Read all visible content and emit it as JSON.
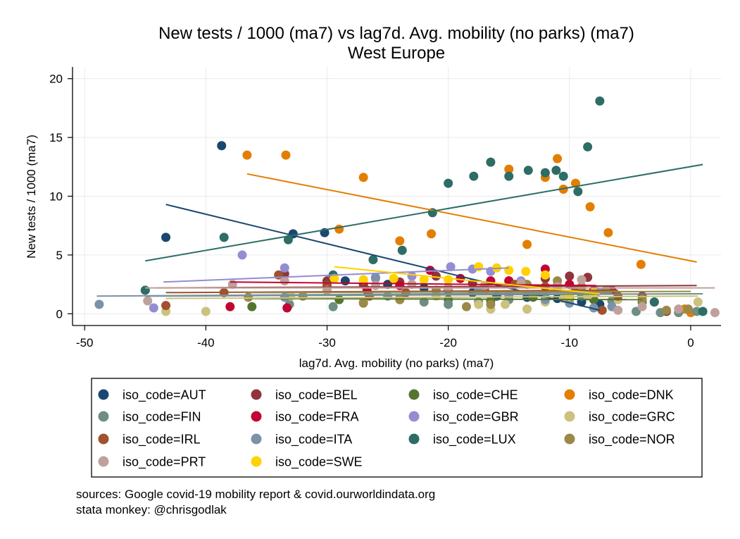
{
  "chart_data": {
    "type": "scatter",
    "title": "New tests / 1000 (ma7) vs lag7d. Avg. mobility (no parks) (ma7)",
    "subtitle": "West Europe",
    "xlabel": "lag7d. Avg. mobility (no parks) (ma7)",
    "ylabel": "New tests / 1000 (ma7)",
    "xlim": [
      -51,
      2.5
    ],
    "ylim": [
      -1,
      21
    ],
    "x_ticks": [
      -50,
      -40,
      -30,
      -20,
      -10,
      0
    ],
    "y_ticks": [
      0,
      5,
      10,
      15,
      20
    ],
    "grid": true,
    "legend_position": "bottom",
    "notes": [
      "sources: Google covid-19 mobility report & covid.ourworldindata.org",
      "stata monkey: @chrisgodlak"
    ],
    "series": [
      {
        "name": "iso_code=AUT",
        "color": "#1a476f",
        "points": [
          [
            -38.7,
            14.3
          ],
          [
            -43.3,
            6.5
          ],
          [
            -32.8,
            6.8
          ],
          [
            -30.2,
            6.9
          ],
          [
            -28.5,
            2.8
          ],
          [
            -25,
            2.5
          ],
          [
            -22,
            2.2
          ],
          [
            -20,
            2.0
          ],
          [
            -18,
            1.8
          ],
          [
            -16,
            1.5
          ],
          [
            -13.5,
            1.4
          ],
          [
            -11,
            1.3
          ],
          [
            -9,
            1.0
          ],
          [
            -7.5,
            0.8
          ],
          [
            -7.6,
            0.6
          ]
        ],
        "fit": [
          [
            -43.3,
            9.3
          ],
          [
            -7.5,
            0.3
          ]
        ]
      },
      {
        "name": "iso_code=BEL",
        "color": "#90353b",
        "points": [
          [
            -33.5,
            3.4
          ],
          [
            -30,
            2.8
          ],
          [
            -27,
            2.5
          ],
          [
            -24,
            2.7
          ],
          [
            -21,
            3.2
          ],
          [
            -18,
            2.6
          ],
          [
            -15,
            2.8
          ],
          [
            -12,
            3.0
          ],
          [
            -10,
            3.2
          ],
          [
            -8.5,
            3.1
          ],
          [
            -6.5,
            2.0
          ],
          [
            -4,
            1.5
          ],
          [
            -3,
            1.0
          ],
          [
            -2,
            0.2
          ]
        ],
        "fit": [
          [
            -44,
            2.2
          ],
          [
            0.5,
            2.4
          ]
        ]
      },
      {
        "name": "iso_code=CHE",
        "color": "#55752f",
        "points": [
          [
            -36.2,
            0.6
          ],
          [
            -29,
            1.2
          ],
          [
            -24,
            1.3
          ],
          [
            -20,
            1.2
          ],
          [
            -16.5,
            1.1
          ],
          [
            -13,
            1.4
          ],
          [
            -10,
            1.3
          ],
          [
            -8,
            1.2
          ],
          [
            -4,
            1.0
          ]
        ],
        "fit": [
          [
            -36.5,
            1.3
          ],
          [
            -4,
            1.2
          ]
        ]
      },
      {
        "name": "iso_code=DNK",
        "color": "#e37e00",
        "points": [
          [
            -36.6,
            13.5
          ],
          [
            -33.4,
            13.5
          ],
          [
            -27,
            11.6
          ],
          [
            -29,
            7.2
          ],
          [
            -24,
            6.2
          ],
          [
            -21.4,
            6.8
          ],
          [
            -15,
            12.3
          ],
          [
            -13.5,
            5.9
          ],
          [
            -12,
            11.6
          ],
          [
            -11,
            13.2
          ],
          [
            -10.5,
            10.6
          ],
          [
            -9.5,
            11.1
          ],
          [
            -8.3,
            9.1
          ],
          [
            -6.8,
            6.9
          ],
          [
            -4.1,
            4.2
          ],
          [
            -0.5,
            0.4
          ],
          [
            0,
            0.1
          ]
        ],
        "fit": [
          [
            -36.6,
            11.9
          ],
          [
            0.5,
            4.4
          ]
        ]
      },
      {
        "name": "iso_code=FIN",
        "color": "#6e8e84",
        "points": [
          [
            -45,
            2.0
          ],
          [
            -33.1,
            0.8
          ],
          [
            -29.5,
            0.6
          ],
          [
            -27,
            1.0
          ],
          [
            -25,
            1.5
          ],
          [
            -22,
            1.0
          ],
          [
            -20,
            0.8
          ],
          [
            -17.5,
            1.0
          ],
          [
            -15,
            1.2
          ],
          [
            -12,
            1.4
          ],
          [
            -9,
            1.5
          ],
          [
            -6.5,
            1.1
          ],
          [
            -4.5,
            0.2
          ],
          [
            -2.5,
            0.1
          ],
          [
            -1,
            0.1
          ],
          [
            0.5,
            0.2
          ]
        ],
        "fit": [
          [
            -45,
            1.5
          ],
          [
            1,
            1.7
          ]
        ]
      },
      {
        "name": "iso_code=FRA",
        "color": "#c10534",
        "points": [
          [
            -38,
            0.6
          ],
          [
            -33.3,
            0.5
          ],
          [
            -26.7,
            2.0
          ],
          [
            -24,
            2.4
          ],
          [
            -21.5,
            3.7
          ],
          [
            -19,
            3.0
          ],
          [
            -16.5,
            2.8
          ],
          [
            -15,
            2.8
          ],
          [
            -12,
            3.8
          ],
          [
            -10,
            2.5
          ],
          [
            -8,
            2.0
          ]
        ],
        "fit": [
          [
            -38,
            2.7
          ],
          [
            -7.8,
            2.4
          ]
        ]
      },
      {
        "name": "iso_code=GBR",
        "color": "#938dd2",
        "points": [
          [
            -44.3,
            0.5
          ],
          [
            -37,
            5.0
          ],
          [
            -33.5,
            3.9
          ],
          [
            -29.5,
            3.2
          ],
          [
            -26,
            3.0
          ],
          [
            -23,
            3.2
          ],
          [
            -19.8,
            4.0
          ],
          [
            -18,
            3.8
          ],
          [
            -16.5,
            3.6
          ],
          [
            -14,
            2.8
          ],
          [
            -11,
            2.4
          ],
          [
            -9,
            2.2
          ],
          [
            -7.7,
            1.9
          ]
        ],
        "fit": [
          [
            -43.5,
            2.7
          ],
          [
            -15,
            3.9
          ]
        ]
      },
      {
        "name": "iso_code=GRC",
        "color": "#cac27e",
        "points": [
          [
            -43.3,
            0.2
          ],
          [
            -40,
            0.2
          ],
          [
            -33,
            1.5
          ],
          [
            -27,
            1.0
          ],
          [
            -24,
            1.2
          ],
          [
            -21,
            1.5
          ],
          [
            -17.5,
            0.8
          ],
          [
            -16.5,
            0.4
          ],
          [
            -15.3,
            0.8
          ],
          [
            -13.5,
            0.4
          ],
          [
            -12,
            1.0
          ],
          [
            -10.5,
            1.3
          ],
          [
            -8.5,
            1.5
          ],
          [
            -6,
            1.2
          ],
          [
            -3,
            1.0
          ],
          [
            0.6,
            1.0
          ]
        ],
        "fit": [
          [
            -43.3,
            1.3
          ],
          [
            0.6,
            1.5
          ]
        ]
      },
      {
        "name": "iso_code=IRL",
        "color": "#a0522d",
        "points": [
          [
            -43.3,
            0.7
          ],
          [
            -38.5,
            1.8
          ],
          [
            -34,
            3.3
          ],
          [
            -30,
            2.4
          ],
          [
            -26.5,
            1.5
          ],
          [
            -23.5,
            1.8
          ],
          [
            -20,
            2.2
          ],
          [
            -17,
            2.0
          ],
          [
            -14.5,
            2.5
          ],
          [
            -12,
            2.3
          ],
          [
            -9.5,
            2.0
          ],
          [
            -7.3,
            0.3
          ],
          [
            -6,
            1.5
          ]
        ],
        "fit": [
          [
            -43.3,
            1.8
          ],
          [
            -6,
            2.0
          ]
        ]
      },
      {
        "name": "iso_code=ITA",
        "color": "#7b92a8",
        "points": [
          [
            -48.8,
            0.8
          ],
          [
            -33.5,
            1.4
          ],
          [
            -26,
            3.1
          ],
          [
            -23,
            2.5
          ],
          [
            -20,
            2.2
          ],
          [
            -17.5,
            2.0
          ],
          [
            -15,
            1.6
          ],
          [
            -12,
            1.2
          ],
          [
            -10,
            0.9
          ],
          [
            -8,
            0.5
          ],
          [
            -6.5,
            0.6
          ]
        ],
        "fit": [
          [
            -49,
            1.5
          ],
          [
            -6.5,
            1.8
          ]
        ]
      },
      {
        "name": "iso_code=LUX",
        "color": "#2d6d66",
        "points": [
          [
            -45,
            2.0
          ],
          [
            -38.5,
            6.5
          ],
          [
            -33.2,
            6.3
          ],
          [
            -29.5,
            3.3
          ],
          [
            -26.2,
            4.6
          ],
          [
            -23.8,
            5.4
          ],
          [
            -21.3,
            8.6
          ],
          [
            -20,
            11.1
          ],
          [
            -17.9,
            11.7
          ],
          [
            -16.5,
            12.9
          ],
          [
            -15,
            11.7
          ],
          [
            -13.4,
            12.2
          ],
          [
            -12,
            12.0
          ],
          [
            -11.1,
            12.2
          ],
          [
            -10.5,
            11.7
          ],
          [
            -9.3,
            10.4
          ],
          [
            -8.5,
            14.2
          ],
          [
            -7.5,
            18.1
          ],
          [
            -3,
            1.0
          ],
          [
            1,
            0.2
          ]
        ],
        "fit": [
          [
            -45,
            4.5
          ],
          [
            1,
            12.7
          ]
        ]
      },
      {
        "name": "iso_code=NOR",
        "color": "#9c8847",
        "points": [
          [
            -36.5,
            1.4
          ],
          [
            -32,
            1.5
          ],
          [
            -27,
            0.9
          ],
          [
            -24,
            1.2
          ],
          [
            -21,
            2.0
          ],
          [
            -18.5,
            0.6
          ],
          [
            -16.5,
            0.8
          ],
          [
            -13.5,
            2.5
          ],
          [
            -11,
            2.8
          ],
          [
            -9,
            2.3
          ],
          [
            -7,
            2.0
          ],
          [
            -4,
            1.2
          ],
          [
            -2,
            0.3
          ],
          [
            -0.2,
            0.4
          ]
        ],
        "fit": [
          [
            -36.5,
            1.8
          ],
          [
            0,
            1.9
          ]
        ]
      },
      {
        "name": "iso_code=PRT",
        "color": "#bfa19c",
        "points": [
          [
            -44.8,
            1.1
          ],
          [
            -37.8,
            2.5
          ],
          [
            -33.5,
            2.8
          ],
          [
            -30,
            2.0
          ],
          [
            -26,
            2.4
          ],
          [
            -23,
            2.5
          ],
          [
            -20,
            2.2
          ],
          [
            -17,
            2.4
          ],
          [
            -14,
            2.6
          ],
          [
            -11,
            2.3
          ],
          [
            -9,
            2.9
          ],
          [
            -6,
            0.3
          ],
          [
            -4,
            0.6
          ],
          [
            -1,
            0.4
          ],
          [
            2,
            0.1
          ]
        ],
        "fit": [
          [
            -45,
            2.2
          ],
          [
            2,
            2.2
          ]
        ]
      },
      {
        "name": "iso_code=SWE",
        "color": "#ffd200",
        "points": [
          [
            -29.4,
            3.0
          ],
          [
            -27,
            2.9
          ],
          [
            -24.5,
            3.0
          ],
          [
            -22,
            2.9
          ],
          [
            -20,
            2.9
          ],
          [
            -17.5,
            4.0
          ],
          [
            -16,
            3.9
          ],
          [
            -15,
            3.7
          ],
          [
            -13.6,
            3.6
          ],
          [
            -12,
            3.3
          ],
          [
            -10,
            1.5
          ],
          [
            -8,
            1.8
          ]
        ],
        "fit": [
          [
            -29.4,
            4.0
          ],
          [
            -7.5,
            1.7
          ]
        ]
      }
    ]
  }
}
